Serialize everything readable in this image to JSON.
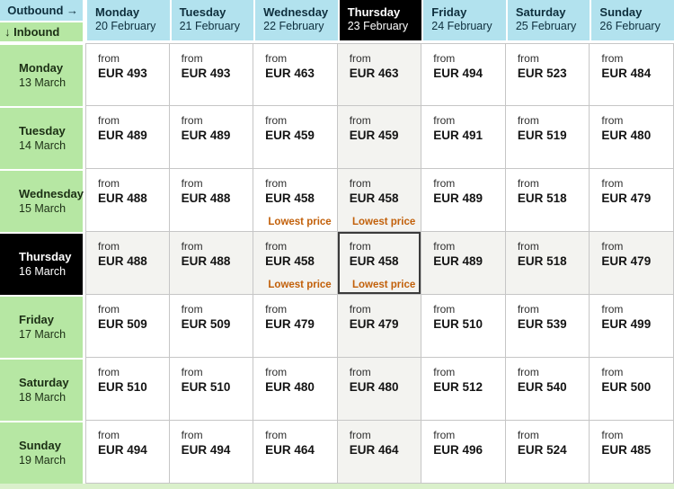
{
  "legend": {
    "outbound": "Outbound →",
    "inbound": "↓ Inbound"
  },
  "labels": {
    "from": "from",
    "currency": "EUR",
    "lowest_price": "Lowest price"
  },
  "colors": {
    "outbound_header_bg": "#b2e2ee",
    "inbound_header_bg": "#b6e7a3",
    "selected_header_bg": "#000000",
    "selected_header_text": "#ffffff",
    "highlight_cell_bg": "#f3f3f0",
    "selected_cell_border": "#3b3b3b",
    "lowest_price_text": "#c2600a",
    "cell_border": "#c6c6c6",
    "bottom_strip": "#daf0cb"
  },
  "columns": [
    {
      "day": "Monday",
      "date": "20 February",
      "selected": false
    },
    {
      "day": "Tuesday",
      "date": "21 February",
      "selected": false
    },
    {
      "day": "Wednesday",
      "date": "22 February",
      "selected": false
    },
    {
      "day": "Thursday",
      "date": "23 February",
      "selected": true
    },
    {
      "day": "Friday",
      "date": "24 February",
      "selected": false
    },
    {
      "day": "Saturday",
      "date": "25 February",
      "selected": false
    },
    {
      "day": "Sunday",
      "date": "26 February",
      "selected": false
    }
  ],
  "rows": [
    {
      "day": "Monday",
      "date": "13 March",
      "selected": false,
      "cells": [
        {
          "value": 493,
          "lowest": false
        },
        {
          "value": 493,
          "lowest": false
        },
        {
          "value": 463,
          "lowest": false
        },
        {
          "value": 463,
          "lowest": false
        },
        {
          "value": 494,
          "lowest": false
        },
        {
          "value": 523,
          "lowest": false
        },
        {
          "value": 484,
          "lowest": false
        }
      ]
    },
    {
      "day": "Tuesday",
      "date": "14 March",
      "selected": false,
      "cells": [
        {
          "value": 489,
          "lowest": false
        },
        {
          "value": 489,
          "lowest": false
        },
        {
          "value": 459,
          "lowest": false
        },
        {
          "value": 459,
          "lowest": false
        },
        {
          "value": 491,
          "lowest": false
        },
        {
          "value": 519,
          "lowest": false
        },
        {
          "value": 480,
          "lowest": false
        }
      ]
    },
    {
      "day": "Wednesday",
      "date": "15 March",
      "selected": false,
      "cells": [
        {
          "value": 488,
          "lowest": false
        },
        {
          "value": 488,
          "lowest": false
        },
        {
          "value": 458,
          "lowest": true
        },
        {
          "value": 458,
          "lowest": true
        },
        {
          "value": 489,
          "lowest": false
        },
        {
          "value": 518,
          "lowest": false
        },
        {
          "value": 479,
          "lowest": false
        }
      ]
    },
    {
      "day": "Thursday",
      "date": "16 March",
      "selected": true,
      "cells": [
        {
          "value": 488,
          "lowest": false
        },
        {
          "value": 488,
          "lowest": false
        },
        {
          "value": 458,
          "lowest": true
        },
        {
          "value": 458,
          "lowest": true
        },
        {
          "value": 489,
          "lowest": false
        },
        {
          "value": 518,
          "lowest": false
        },
        {
          "value": 479,
          "lowest": false
        }
      ]
    },
    {
      "day": "Friday",
      "date": "17 March",
      "selected": false,
      "cells": [
        {
          "value": 509,
          "lowest": false
        },
        {
          "value": 509,
          "lowest": false
        },
        {
          "value": 479,
          "lowest": false
        },
        {
          "value": 479,
          "lowest": false
        },
        {
          "value": 510,
          "lowest": false
        },
        {
          "value": 539,
          "lowest": false
        },
        {
          "value": 499,
          "lowest": false
        }
      ]
    },
    {
      "day": "Saturday",
      "date": "18 March",
      "selected": false,
      "cells": [
        {
          "value": 510,
          "lowest": false
        },
        {
          "value": 510,
          "lowest": false
        },
        {
          "value": 480,
          "lowest": false
        },
        {
          "value": 480,
          "lowest": false
        },
        {
          "value": 512,
          "lowest": false
        },
        {
          "value": 540,
          "lowest": false
        },
        {
          "value": 500,
          "lowest": false
        }
      ]
    },
    {
      "day": "Sunday",
      "date": "19 March",
      "selected": false,
      "cells": [
        {
          "value": 494,
          "lowest": false
        },
        {
          "value": 494,
          "lowest": false
        },
        {
          "value": 464,
          "lowest": false
        },
        {
          "value": 464,
          "lowest": false
        },
        {
          "value": 496,
          "lowest": false
        },
        {
          "value": 524,
          "lowest": false
        },
        {
          "value": 485,
          "lowest": false
        }
      ]
    }
  ]
}
